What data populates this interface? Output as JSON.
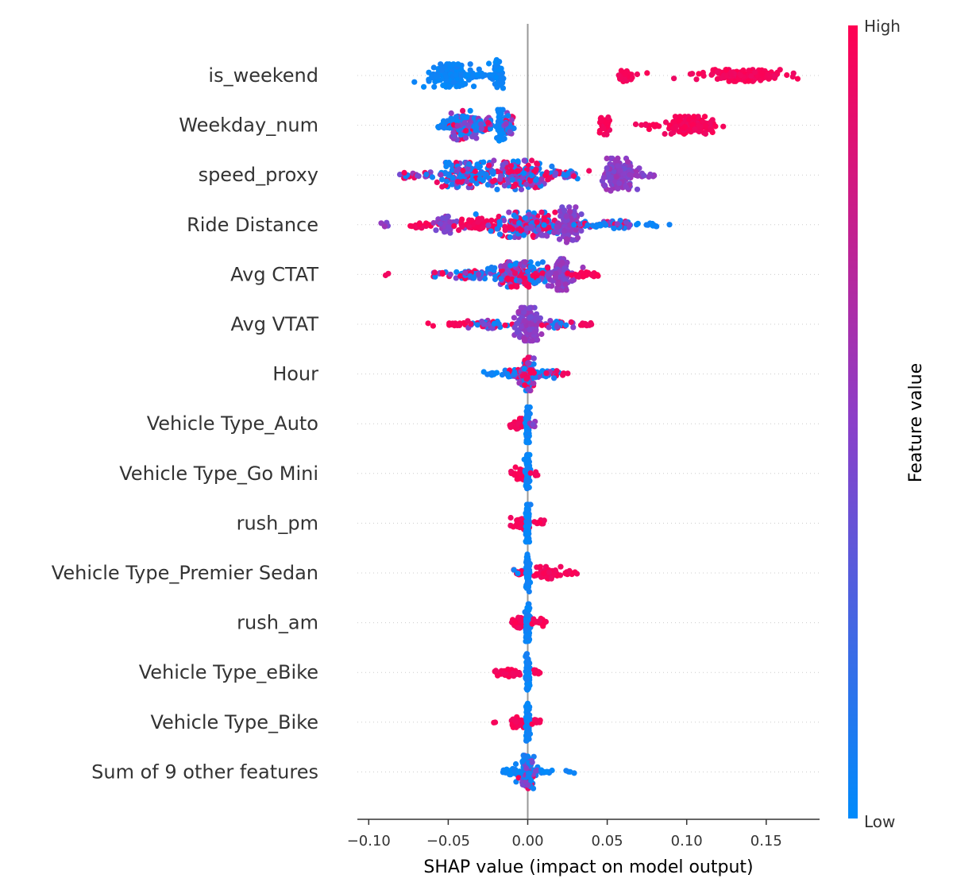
{
  "chart_data": {
    "type": "beeswarm",
    "xlabel": "SHAP value (impact on model output)",
    "xlim": [
      -0.107,
      0.185
    ],
    "xticks": [
      -0.1,
      -0.05,
      0.0,
      0.05,
      0.1,
      0.15
    ],
    "xtick_labels": [
      "−0.10",
      "−0.05",
      "0.00",
      "0.05",
      "0.10",
      "0.15"
    ],
    "colorbar": {
      "label": "Feature value",
      "high_label": "High",
      "low_label": "Low",
      "low_color": "#008bfb",
      "mid_color": "#8b3fc9",
      "high_color": "#ff0052"
    },
    "features": [
      {
        "name": "is_weekend",
        "clusters": [
          {
            "center": -0.049,
            "spread": 0.008,
            "thickness": 0.55,
            "count": 170,
            "color": "low"
          },
          {
            "center": -0.03,
            "spread": 0.008,
            "thickness": 0.1,
            "count": 25,
            "color": "low"
          },
          {
            "center": -0.019,
            "spread": 0.002,
            "thickness": 0.75,
            "count": 60,
            "color": "low"
          },
          {
            "center": 0.061,
            "spread": 0.003,
            "thickness": 0.3,
            "count": 45,
            "color": "high"
          },
          {
            "center": 0.133,
            "spread": 0.018,
            "thickness": 0.28,
            "count": 170,
            "color": "high"
          }
        ]
      },
      {
        "name": "Weekday_num",
        "clusters": [
          {
            "center": -0.052,
            "spread": 0.005,
            "thickness": 0.2,
            "count": 20,
            "color": "low"
          },
          {
            "center": -0.04,
            "spread": 0.006,
            "thickness": 0.7,
            "count": 110,
            "color": "mixedlow"
          },
          {
            "center": -0.028,
            "spread": 0.004,
            "thickness": 0.4,
            "count": 40,
            "color": "mixed"
          },
          {
            "center": -0.017,
            "spread": 0.002,
            "thickness": 0.75,
            "count": 50,
            "color": "low"
          },
          {
            "center": -0.012,
            "spread": 0.002,
            "thickness": 0.6,
            "count": 30,
            "color": "mixed"
          },
          {
            "center": 0.048,
            "spread": 0.002,
            "thickness": 0.45,
            "count": 40,
            "color": "high"
          },
          {
            "center": 0.078,
            "spread": 0.004,
            "thickness": 0.12,
            "count": 10,
            "color": "high"
          },
          {
            "center": 0.103,
            "spread": 0.01,
            "thickness": 0.42,
            "count": 150,
            "color": "high"
          }
        ]
      },
      {
        "name": "speed_proxy",
        "clusters": [
          {
            "center": -0.07,
            "spread": 0.008,
            "thickness": 0.15,
            "count": 25,
            "color": "mixed"
          },
          {
            "center": -0.04,
            "spread": 0.012,
            "thickness": 0.6,
            "count": 170,
            "color": "mixedlow"
          },
          {
            "center": -0.005,
            "spread": 0.012,
            "thickness": 0.7,
            "count": 190,
            "color": "mixed"
          },
          {
            "center": 0.025,
            "spread": 0.006,
            "thickness": 0.2,
            "count": 25,
            "color": "mixed"
          },
          {
            "center": 0.057,
            "spread": 0.006,
            "thickness": 0.8,
            "count": 170,
            "color": "purple"
          },
          {
            "center": 0.072,
            "spread": 0.005,
            "thickness": 0.2,
            "count": 15,
            "color": "purple"
          }
        ]
      },
      {
        "name": "Ride Distance",
        "clusters": [
          {
            "center": -0.091,
            "spread": 0.003,
            "thickness": 0.1,
            "count": 6,
            "color": "purple"
          },
          {
            "center": -0.065,
            "spread": 0.006,
            "thickness": 0.15,
            "count": 20,
            "color": "high"
          },
          {
            "center": -0.052,
            "spread": 0.004,
            "thickness": 0.4,
            "count": 50,
            "color": "purple"
          },
          {
            "center": -0.03,
            "spread": 0.008,
            "thickness": 0.3,
            "count": 80,
            "color": "high"
          },
          {
            "center": 0.0,
            "spread": 0.012,
            "thickness": 0.6,
            "count": 190,
            "color": "mixed"
          },
          {
            "center": 0.026,
            "spread": 0.004,
            "thickness": 0.85,
            "count": 110,
            "color": "purple"
          },
          {
            "center": 0.05,
            "spread": 0.012,
            "thickness": 0.2,
            "count": 60,
            "color": "mixedlow"
          },
          {
            "center": 0.078,
            "spread": 0.006,
            "thickness": 0.1,
            "count": 10,
            "color": "low"
          }
        ]
      },
      {
        "name": "Avg CTAT",
        "clusters": [
          {
            "center": -0.089,
            "spread": 0.001,
            "thickness": 0.05,
            "count": 2,
            "color": "high"
          },
          {
            "center": -0.055,
            "spread": 0.005,
            "thickness": 0.12,
            "count": 10,
            "color": "mixed"
          },
          {
            "center": -0.035,
            "spread": 0.008,
            "thickness": 0.2,
            "count": 50,
            "color": "mixedlow"
          },
          {
            "center": -0.008,
            "spread": 0.008,
            "thickness": 0.6,
            "count": 140,
            "color": "mixed"
          },
          {
            "center": 0.006,
            "spread": 0.006,
            "thickness": 0.4,
            "count": 60,
            "color": "mixed"
          },
          {
            "center": 0.021,
            "spread": 0.004,
            "thickness": 0.75,
            "count": 110,
            "color": "purple"
          },
          {
            "center": 0.038,
            "spread": 0.006,
            "thickness": 0.15,
            "count": 25,
            "color": "high"
          }
        ]
      },
      {
        "name": "Avg VTAT",
        "clusters": [
          {
            "center": -0.045,
            "spread": 0.008,
            "thickness": 0.1,
            "count": 15,
            "color": "high"
          },
          {
            "center": -0.024,
            "spread": 0.008,
            "thickness": 0.2,
            "count": 50,
            "color": "mixed"
          },
          {
            "center": 0.0,
            "spread": 0.005,
            "thickness": 0.8,
            "count": 140,
            "color": "purple"
          },
          {
            "center": 0.02,
            "spread": 0.006,
            "thickness": 0.2,
            "count": 30,
            "color": "mixedlow"
          },
          {
            "center": 0.038,
            "spread": 0.004,
            "thickness": 0.12,
            "count": 12,
            "color": "high"
          }
        ]
      },
      {
        "name": "Hour",
        "clusters": [
          {
            "center": -0.022,
            "spread": 0.003,
            "thickness": 0.1,
            "count": 12,
            "color": "low"
          },
          {
            "center": -0.008,
            "spread": 0.005,
            "thickness": 0.2,
            "count": 40,
            "color": "mixedlow"
          },
          {
            "center": 0.0,
            "spread": 0.0025,
            "thickness": 0.8,
            "count": 120,
            "color": "mixed"
          },
          {
            "center": 0.012,
            "spread": 0.005,
            "thickness": 0.2,
            "count": 30,
            "color": "mixedlow"
          },
          {
            "center": 0.024,
            "spread": 0.002,
            "thickness": 0.08,
            "count": 4,
            "color": "high"
          }
        ]
      },
      {
        "name": "Vehicle Type_Auto",
        "clusters": [
          {
            "center": -0.006,
            "spread": 0.003,
            "thickness": 0.25,
            "count": 35,
            "color": "high"
          },
          {
            "center": 0.0,
            "spread": 0.0008,
            "thickness": 0.9,
            "count": 80,
            "color": "low"
          },
          {
            "center": 0.003,
            "spread": 0.001,
            "thickness": 0.2,
            "count": 6,
            "color": "purple"
          }
        ]
      },
      {
        "name": "Vehicle Type_Go Mini",
        "clusters": [
          {
            "center": -0.006,
            "spread": 0.003,
            "thickness": 0.3,
            "count": 40,
            "color": "high"
          },
          {
            "center": 0.0,
            "spread": 0.0008,
            "thickness": 0.9,
            "count": 80,
            "color": "low"
          },
          {
            "center": 0.005,
            "spread": 0.002,
            "thickness": 0.15,
            "count": 8,
            "color": "high"
          }
        ]
      },
      {
        "name": "rush_pm",
        "clusters": [
          {
            "center": -0.005,
            "spread": 0.003,
            "thickness": 0.3,
            "count": 40,
            "color": "high"
          },
          {
            "center": 0.0,
            "spread": 0.0008,
            "thickness": 0.9,
            "count": 80,
            "color": "low"
          },
          {
            "center": 0.008,
            "spread": 0.003,
            "thickness": 0.15,
            "count": 10,
            "color": "high"
          }
        ]
      },
      {
        "name": "Vehicle Type_Premier Sedan",
        "clusters": [
          {
            "center": -0.006,
            "spread": 0.002,
            "thickness": 0.2,
            "count": 15,
            "color": "mixedlowhigh"
          },
          {
            "center": 0.0,
            "spread": 0.0008,
            "thickness": 0.9,
            "count": 80,
            "color": "low"
          },
          {
            "center": 0.012,
            "spread": 0.006,
            "thickness": 0.3,
            "count": 50,
            "color": "high"
          },
          {
            "center": 0.027,
            "spread": 0.003,
            "thickness": 0.1,
            "count": 8,
            "color": "high"
          }
        ]
      },
      {
        "name": "rush_am",
        "clusters": [
          {
            "center": -0.006,
            "spread": 0.003,
            "thickness": 0.25,
            "count": 35,
            "color": "high"
          },
          {
            "center": 0.0,
            "spread": 0.0008,
            "thickness": 0.9,
            "count": 80,
            "color": "low"
          },
          {
            "center": 0.008,
            "spread": 0.003,
            "thickness": 0.2,
            "count": 20,
            "color": "high"
          }
        ]
      },
      {
        "name": "Vehicle Type_eBike",
        "clusters": [
          {
            "center": -0.012,
            "spread": 0.005,
            "thickness": 0.2,
            "count": 35,
            "color": "high"
          },
          {
            "center": 0.0,
            "spread": 0.0008,
            "thickness": 0.9,
            "count": 80,
            "color": "low"
          },
          {
            "center": 0.007,
            "spread": 0.003,
            "thickness": 0.12,
            "count": 8,
            "color": "high"
          }
        ]
      },
      {
        "name": "Vehicle Type_Bike",
        "clusters": [
          {
            "center": -0.022,
            "spread": 0.001,
            "thickness": 0.05,
            "count": 2,
            "color": "high"
          },
          {
            "center": -0.006,
            "spread": 0.003,
            "thickness": 0.25,
            "count": 35,
            "color": "high"
          },
          {
            "center": 0.0,
            "spread": 0.0008,
            "thickness": 0.9,
            "count": 80,
            "color": "low"
          },
          {
            "center": 0.006,
            "spread": 0.002,
            "thickness": 0.15,
            "count": 10,
            "color": "high"
          }
        ]
      },
      {
        "name": "Sum of 9 other features",
        "clusters": [
          {
            "center": -0.01,
            "spread": 0.004,
            "thickness": 0.15,
            "count": 25,
            "color": "low"
          },
          {
            "center": 0.0,
            "spread": 0.003,
            "thickness": 0.8,
            "count": 110,
            "color": "mixedlow"
          },
          {
            "center": 0.012,
            "spread": 0.003,
            "thickness": 0.12,
            "count": 12,
            "color": "low"
          },
          {
            "center": 0.026,
            "spread": 0.003,
            "thickness": 0.06,
            "count": 4,
            "color": "low"
          }
        ]
      }
    ]
  }
}
